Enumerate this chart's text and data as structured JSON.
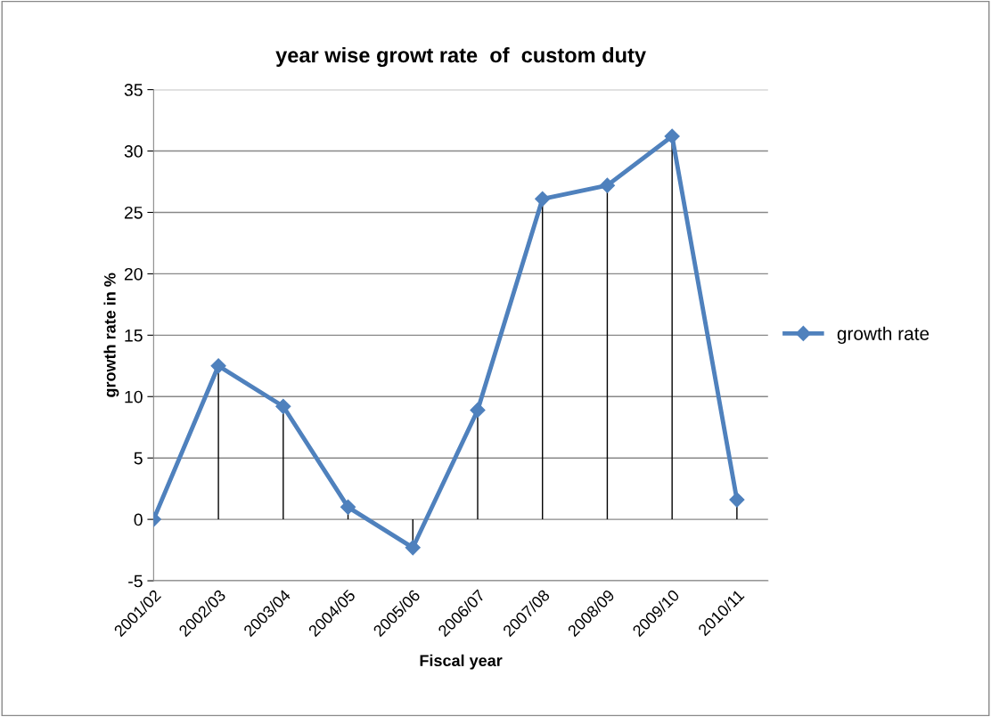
{
  "chart_data": {
    "type": "line",
    "title": "year wise growt rate  of  custom duty",
    "xlabel": "Fiscal year",
    "ylabel": "growth rate in %",
    "categories": [
      "2001/02",
      "2002/03",
      "2003/04",
      "2004/05",
      "2005/06",
      "2006/07",
      "2007/08",
      "2008/09",
      "2009/10",
      "2010/11"
    ],
    "series": [
      {
        "name": "growth rate",
        "color": "#4f81bd",
        "values": [
          0,
          12.5,
          9.2,
          1.0,
          -2.3,
          8.9,
          26.1,
          27.2,
          31.2,
          1.6
        ],
        "errors": [
          [
            0,
            0
          ],
          [
            0,
            12.5
          ],
          [
            0,
            9.2
          ],
          [
            0,
            1.0
          ],
          [
            -2.3,
            0
          ],
          [
            0,
            8.9
          ],
          [
            0,
            26.1
          ],
          [
            0,
            27.2
          ],
          [
            0,
            31.2
          ],
          [
            0,
            1.6
          ]
        ]
      }
    ],
    "ylim": [
      -5,
      35
    ],
    "yticks": [
      -5,
      0,
      5,
      10,
      15,
      20,
      25,
      30,
      35
    ],
    "grid": "y",
    "legend": "right",
    "marker": "diamond",
    "line_style": "solid"
  }
}
